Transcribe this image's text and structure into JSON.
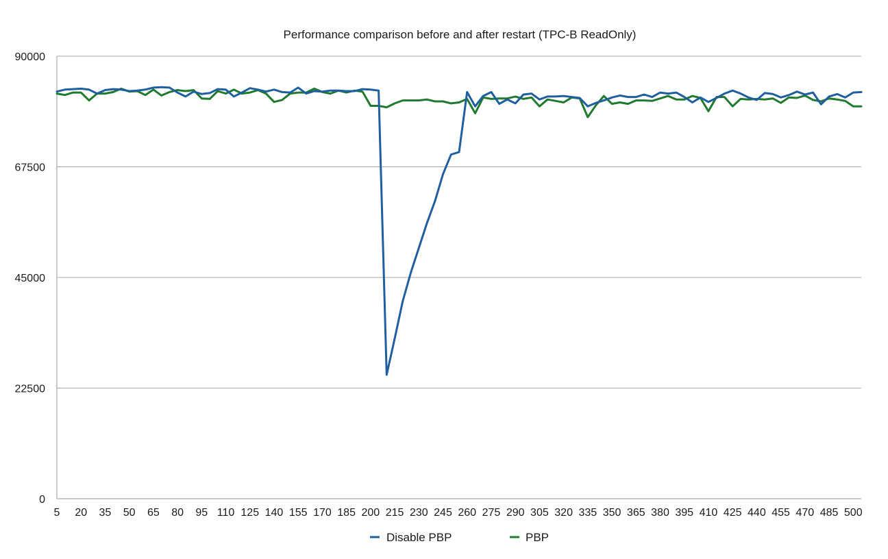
{
  "chart_data": {
    "type": "line",
    "title": "Performance comparison before and after restart (TPC-B ReadOnly)",
    "xlabel": "",
    "ylabel": "",
    "ylim": [
      0,
      90000
    ],
    "yticks": [
      "0",
      "22500",
      "45000",
      "67500",
      "90000"
    ],
    "grid": "horizontal",
    "legend_position": "bottom",
    "x": [
      5,
      10,
      15,
      20,
      25,
      30,
      35,
      40,
      45,
      50,
      55,
      60,
      65,
      70,
      75,
      80,
      85,
      90,
      95,
      100,
      105,
      110,
      115,
      120,
      125,
      130,
      135,
      140,
      145,
      150,
      155,
      160,
      165,
      170,
      175,
      180,
      185,
      190,
      195,
      200,
      205,
      210,
      215,
      220,
      225,
      230,
      235,
      240,
      245,
      250,
      255,
      260,
      265,
      270,
      275,
      280,
      285,
      290,
      295,
      300,
      305,
      310,
      315,
      320,
      325,
      330,
      335,
      340,
      345,
      350,
      355,
      360,
      365,
      370,
      375,
      380,
      385,
      390,
      395,
      400,
      405,
      410,
      415,
      420,
      425,
      430,
      435,
      440,
      445,
      450,
      455,
      460,
      465,
      470,
      475,
      480,
      485,
      490,
      495,
      500,
      505
    ],
    "xticks": [
      "5",
      "20",
      "35",
      "50",
      "65",
      "80",
      "95",
      "110",
      "125",
      "140",
      "155",
      "170",
      "185",
      "200",
      "215",
      "230",
      "245",
      "260",
      "275",
      "290",
      "305",
      "320",
      "335",
      "350",
      "365",
      "380",
      "395",
      "410",
      "425",
      "440",
      "455",
      "470",
      "485",
      "500"
    ],
    "series": [
      {
        "name": "Disable PBP",
        "color": "#1f5fa0",
        "values": [
          82800,
          83200,
          83300,
          83400,
          83200,
          82400,
          83100,
          83300,
          83200,
          82900,
          83000,
          83200,
          83600,
          83700,
          83600,
          82600,
          81800,
          82800,
          82300,
          82500,
          83300,
          83200,
          81800,
          82600,
          83500,
          83200,
          82800,
          83200,
          82700,
          82600,
          83600,
          82400,
          82900,
          82800,
          83000,
          83000,
          82900,
          82900,
          83300,
          83200,
          83000,
          25200,
          32600,
          40200,
          46000,
          51000,
          56000,
          60500,
          66000,
          70000,
          70500,
          82700,
          79800,
          81900,
          82700,
          80300,
          81200,
          80400,
          82200,
          82400,
          81200,
          81800,
          81800,
          81900,
          81700,
          81500,
          79800,
          80500,
          81000,
          81600,
          82000,
          81700,
          81700,
          82200,
          81700,
          82600,
          82400,
          82600,
          81700,
          80600,
          81600,
          80700,
          81500,
          82400,
          83000,
          82400,
          81600,
          81100,
          82500,
          82300,
          81600,
          82100,
          82800,
          82200,
          82600,
          80200,
          81800,
          82300,
          81600,
          82600,
          82700
        ]
      },
      {
        "name": "PBP",
        "color": "#1f7a2e",
        "values": [
          82400,
          82100,
          82600,
          82600,
          81000,
          82400,
          82400,
          82700,
          83400,
          82800,
          82900,
          82100,
          83200,
          82000,
          82700,
          83100,
          82900,
          83100,
          81400,
          81300,
          82900,
          82400,
          83200,
          82400,
          82600,
          83100,
          82400,
          80700,
          81100,
          82400,
          82600,
          82600,
          83400,
          82700,
          82400,
          83000,
          82600,
          83000,
          82800,
          79900,
          79900,
          79600,
          80400,
          81000,
          81000,
          81000,
          81200,
          80800,
          80800,
          80400,
          80600,
          81300,
          78400,
          81600,
          81300,
          81400,
          81400,
          81800,
          81300,
          81600,
          79800,
          81200,
          80900,
          80600,
          81600,
          81400,
          77600,
          80000,
          81900,
          80300,
          80600,
          80300,
          81000,
          81000,
          80900,
          81400,
          81900,
          81200,
          81200,
          81900,
          81500,
          78800,
          81700,
          81700,
          79800,
          81300,
          81200,
          81300,
          81200,
          81400,
          80500,
          81600,
          81500,
          82000,
          81100,
          80800,
          81400,
          81200,
          80900,
          79800,
          79800
        ]
      }
    ]
  }
}
